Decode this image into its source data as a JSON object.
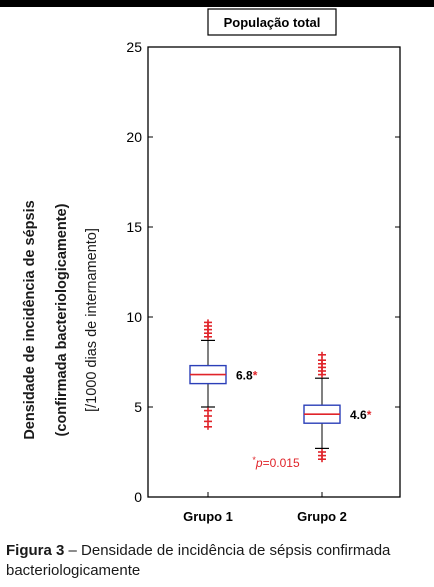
{
  "chart_data": {
    "type": "box",
    "title": "População total",
    "ylabel": {
      "line1": "Densidade de incidência de sépsis",
      "line2": "(confirmada bacteriologicamente)",
      "line3": "[/1000 dias de internamento]"
    },
    "ylim": [
      0,
      25
    ],
    "yticks": [
      0,
      5,
      10,
      15,
      20,
      25
    ],
    "categories": [
      "Grupo 1",
      "Grupo 2"
    ],
    "boxes": [
      {
        "name": "Grupo 1",
        "median": 6.8,
        "q1": 6.3,
        "q3": 7.3,
        "whisker_low": 5.0,
        "whisker_high": 8.7,
        "outliers_high": [
          8.9,
          9.1,
          9.3,
          9.5,
          9.7
        ],
        "outliers_low": [
          4.8,
          4.5,
          4.2,
          3.9
        ],
        "label": "6.8",
        "label_mark": "*"
      },
      {
        "name": "Grupo 2",
        "median": 4.6,
        "q1": 4.1,
        "q3": 5.1,
        "whisker_low": 2.7,
        "whisker_high": 6.6,
        "outliers_high": [
          6.8,
          7.0,
          7.2,
          7.4,
          7.6,
          7.9
        ],
        "outliers_low": [
          2.5,
          2.3,
          2.1
        ],
        "label": "4.6",
        "label_mark": "*"
      }
    ],
    "annotation": {
      "mark": "*",
      "italic": "p",
      "text": "=0.015"
    },
    "colors": {
      "box": "#2b3fb8",
      "median": "#e0242a",
      "outlier": "#e0242a",
      "whisker": "#000000"
    }
  },
  "caption": {
    "label": "Figura 3",
    "text": " – Densidade de incidência de sépsis confirmada bacteriologicamente"
  }
}
